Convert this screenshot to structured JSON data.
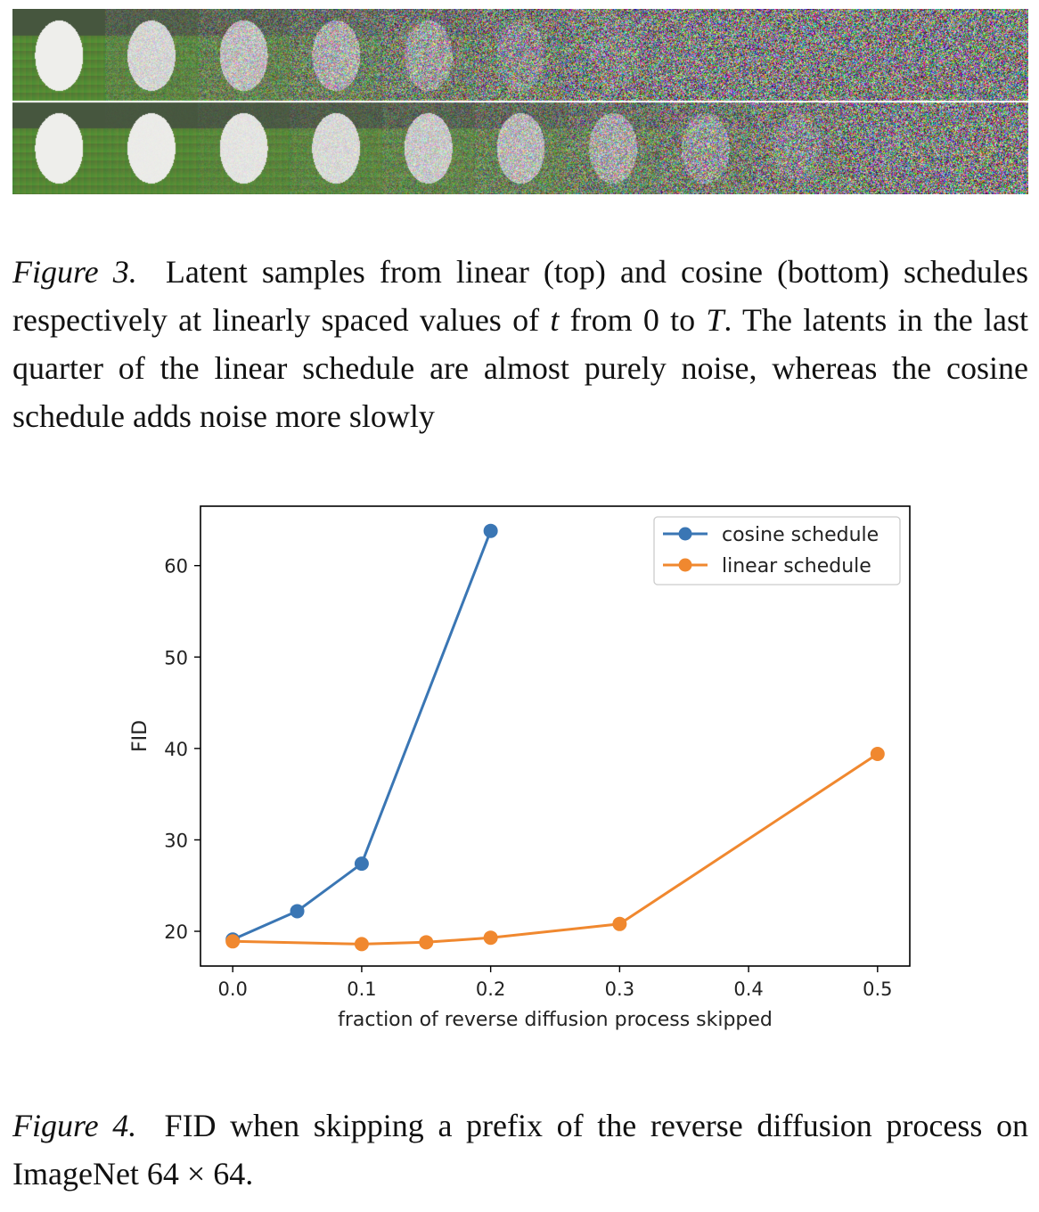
{
  "figure3": {
    "label": "Figure 3.",
    "text_before_t": "Latent samples from linear (top) and cosine (bottom) schedules respectively at linearly spaced values of ",
    "var_t": "t",
    "text_mid": " from 0 to ",
    "var_T": "T",
    "text_after": ". The latents in the last quarter of the linear schedule are almost purely noise, whereas the cosine schedule adds noise more slowly",
    "rows": [
      "linear",
      "cosine"
    ],
    "columns": 11
  },
  "figure4": {
    "label": "Figure 4.",
    "text": "FID when skipping a prefix of the reverse diffusion process on ImageNet 64 × 64."
  },
  "chart_data": {
    "type": "line",
    "title": "",
    "xlabel": "fraction of reverse diffusion process skipped",
    "ylabel": "FID",
    "xlim": [
      -0.025,
      0.525
    ],
    "ylim": [
      16.2,
      66.5
    ],
    "xticks": [
      0.0,
      0.1,
      0.2,
      0.3,
      0.4,
      0.5
    ],
    "xtick_labels": [
      "0.0",
      "0.1",
      "0.2",
      "0.3",
      "0.4",
      "0.5"
    ],
    "yticks": [
      20,
      30,
      40,
      50,
      60
    ],
    "ytick_labels": [
      "20",
      "30",
      "40",
      "50",
      "60"
    ],
    "grid": false,
    "legend_position": "top-right",
    "series": [
      {
        "name": "cosine schedule",
        "color": "#3a76b4",
        "x": [
          0.0,
          0.05,
          0.1,
          0.2
        ],
        "y": [
          19.1,
          22.2,
          27.4,
          63.8
        ]
      },
      {
        "name": "linear schedule",
        "color": "#f0882f",
        "x": [
          0.0,
          0.1,
          0.15,
          0.2,
          0.3,
          0.5
        ],
        "y": [
          18.9,
          18.6,
          18.8,
          19.3,
          20.8,
          39.4
        ]
      }
    ]
  }
}
